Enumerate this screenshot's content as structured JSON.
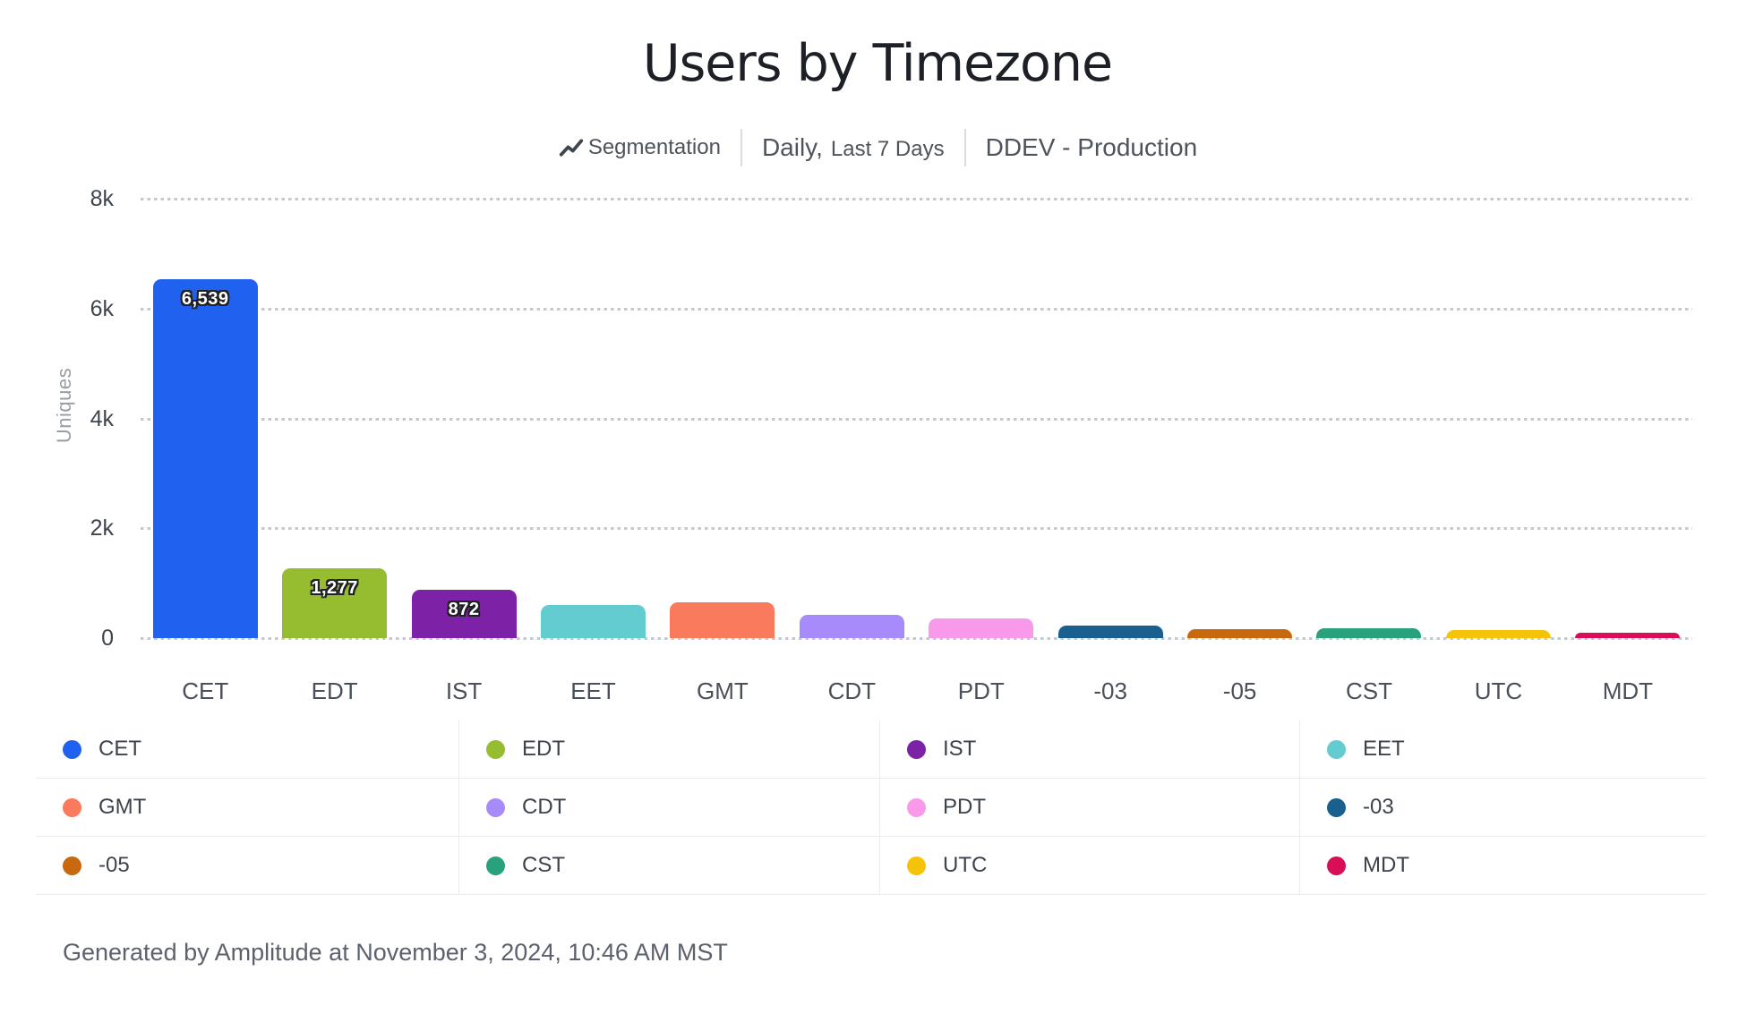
{
  "header": {
    "title": "Users by Timezone",
    "subtitle": {
      "segmentation_label": "Segmentation",
      "period_primary": "Daily,",
      "period_secondary": "Last 7 Days",
      "project": "DDEV - Production"
    },
    "segmentation_icon": "line-chart-zigzag"
  },
  "chart_data": {
    "type": "bar",
    "title": "Users by Timezone",
    "xlabel": "",
    "ylabel": "Uniques",
    "ylim": [
      0,
      8000
    ],
    "grid": "horizontal-dotted",
    "legend_position": "bottom",
    "legend_columns": 4,
    "yticks": [
      {
        "value": 0,
        "label": "0"
      },
      {
        "value": 2000,
        "label": "2k"
      },
      {
        "value": 4000,
        "label": "4k"
      },
      {
        "value": 6000,
        "label": "6k"
      },
      {
        "value": 8000,
        "label": "8k"
      }
    ],
    "categories": [
      "CET",
      "EDT",
      "IST",
      "EET",
      "GMT",
      "CDT",
      "PDT",
      "-03",
      "-05",
      "CST",
      "UTC",
      "MDT"
    ],
    "values": [
      6539,
      1277,
      872,
      600,
      650,
      420,
      360,
      230,
      165,
      180,
      150,
      100
    ],
    "value_labels": [
      "6,539",
      "1,277",
      "872",
      "",
      "",
      "",
      "",
      "",
      "",
      "",
      "",
      ""
    ],
    "colors": [
      "#2161ef",
      "#96bd2f",
      "#7d22a6",
      "#63ccd1",
      "#fa7a5e",
      "#a78bfa",
      "#f89ae9",
      "#1a608e",
      "#c8680f",
      "#28a17c",
      "#f5c40a",
      "#d90e57"
    ]
  },
  "footer": {
    "text": "Generated by Amplitude at November 3, 2024, 10:46 AM MST"
  }
}
